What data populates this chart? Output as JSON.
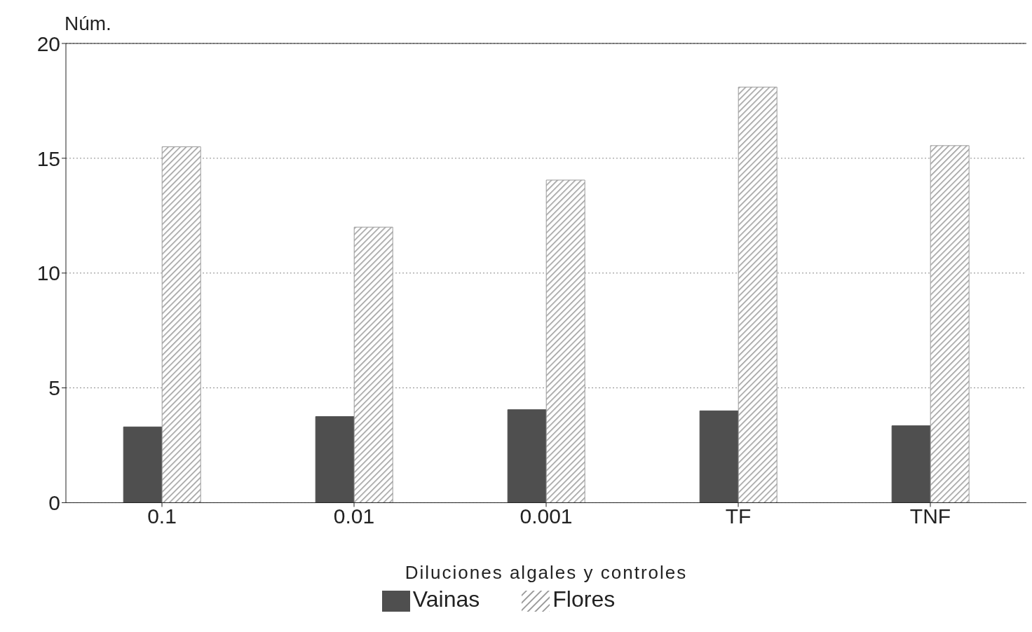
{
  "chart_data": {
    "type": "bar",
    "ylabel": "Núm.",
    "xlabel": "Diluciones algales y controles",
    "categories": [
      "0.1",
      "0.01",
      "0.001",
      "TF",
      "TNF"
    ],
    "series": [
      {
        "name": "Vainas",
        "color": "#4f4f4f",
        "values": [
          3.3,
          3.75,
          4.05,
          4.0,
          3.35
        ]
      },
      {
        "name": "Flores",
        "color": "#9a9a9a",
        "values": [
          15.5,
          12.0,
          14.05,
          18.1,
          15.55
        ]
      }
    ],
    "ylim": [
      0,
      20
    ],
    "yticks": [
      0,
      5,
      10,
      15,
      20
    ],
    "grid": "y",
    "legend": "bottom"
  }
}
